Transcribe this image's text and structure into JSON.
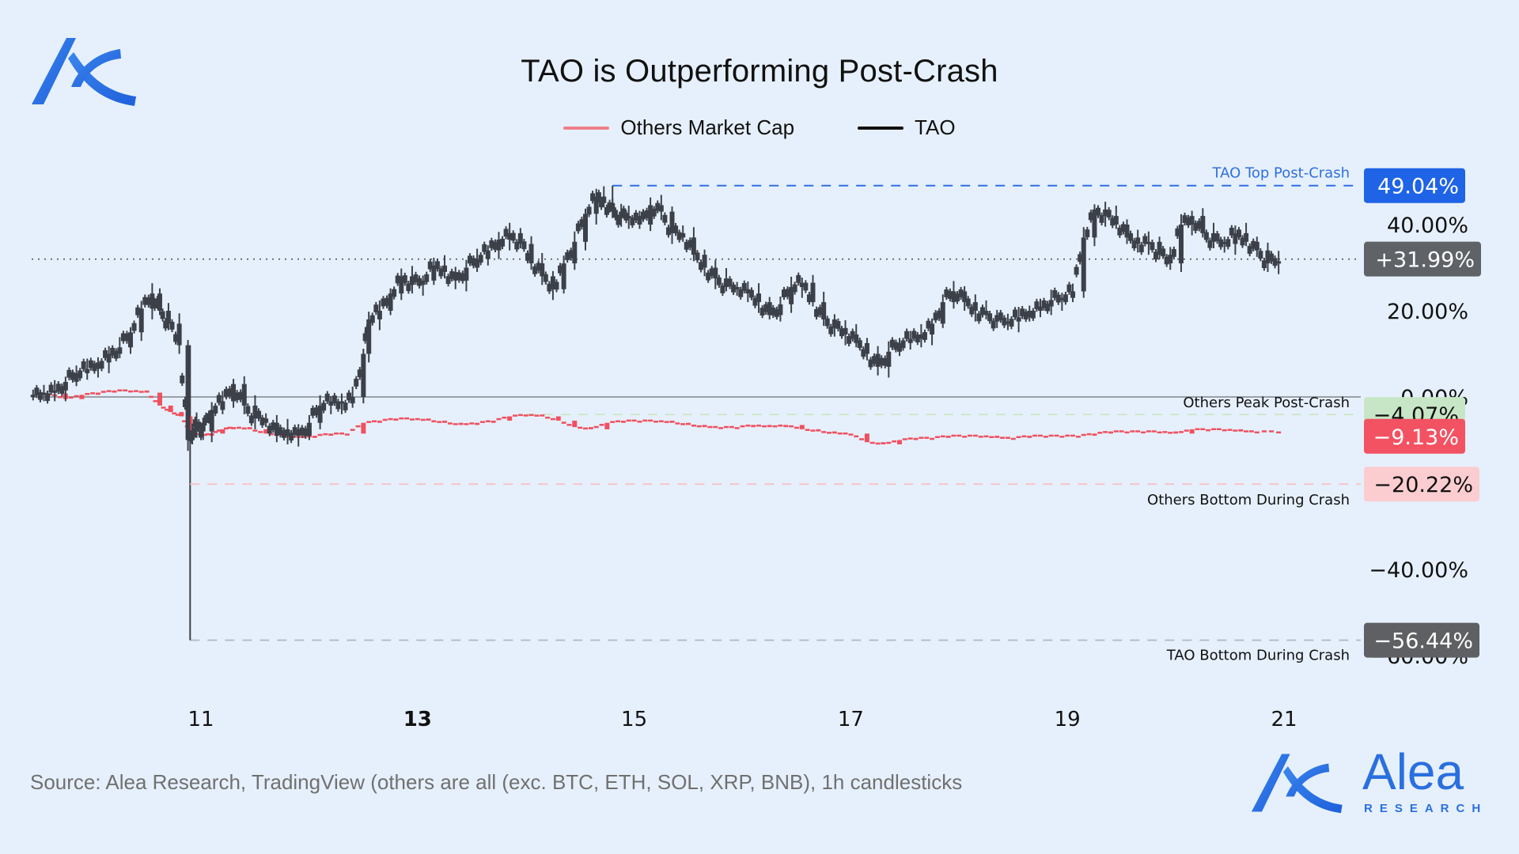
{
  "header": {
    "title": "TAO is Outperforming Post-Crash"
  },
  "brand": {
    "logo_icon": "alea-logo-icon",
    "name": "Alea",
    "subtitle": "RESEARCH",
    "color": "#2a6fe0"
  },
  "footer": {
    "source": "Source: Alea Research, TradingView (others are all (exc. BTC, ETH, SOL, XRP, BNB), 1h candlesticks"
  },
  "chart_data": {
    "type": "line",
    "title": "TAO is Outperforming Post-Crash",
    "xlabel": "",
    "ylabel": "",
    "x_unit": "day of month",
    "x_range": [
      9.44,
      21.7
    ],
    "ylim": [
      -62,
      62
    ],
    "y_ticks": [
      {
        "value": 40,
        "label": "40.00%"
      },
      {
        "value": 20,
        "label": "20.00%"
      },
      {
        "value": 0,
        "label": "0.00%"
      },
      {
        "value": -40,
        "label": "−40.00%"
      },
      {
        "value": -60,
        "label": "−60.00%"
      }
    ],
    "x_ticks": [
      {
        "value": 11,
        "label": "11",
        "bold": false
      },
      {
        "value": 13,
        "label": "13",
        "bold": true
      },
      {
        "value": 15,
        "label": "15",
        "bold": false
      },
      {
        "value": 17,
        "label": "17",
        "bold": false
      },
      {
        "value": 19,
        "label": "19",
        "bold": false
      },
      {
        "value": 21,
        "label": "21",
        "bold": false
      }
    ],
    "grid": false,
    "legend": {
      "placement": "top-center",
      "entries": [
        {
          "name": "Others Market Cap",
          "color": "#ee7f8a"
        },
        {
          "name": "TAO",
          "color": "#111111"
        }
      ]
    },
    "series": [
      {
        "name": "TAO",
        "style": "candlestick",
        "color": "#3c4048",
        "x": [
          9.45,
          9.55,
          9.65,
          9.75,
          9.85,
          9.95,
          10.05,
          10.15,
          10.25,
          10.35,
          10.45,
          10.55,
          10.62,
          10.7,
          10.8,
          10.88,
          10.92,
          10.96,
          11.02,
          11.1,
          11.2,
          11.3,
          11.4,
          11.5,
          11.6,
          11.7,
          11.8,
          11.9,
          12.0,
          12.1,
          12.2,
          12.3,
          12.4,
          12.5,
          12.55,
          12.65,
          12.75,
          12.85,
          12.95,
          13.05,
          13.15,
          13.25,
          13.35,
          13.45,
          13.55,
          13.65,
          13.75,
          13.85,
          13.95,
          14.05,
          14.15,
          14.25,
          14.35,
          14.45,
          14.55,
          14.65,
          14.72,
          14.8,
          14.88,
          14.95,
          15.05,
          15.15,
          15.25,
          15.35,
          15.45,
          15.55,
          15.65,
          15.75,
          15.85,
          15.95,
          16.05,
          16.15,
          16.25,
          16.35,
          16.45,
          16.55,
          16.65,
          16.75,
          16.85,
          16.95,
          17.05,
          17.15,
          17.25,
          17.35,
          17.45,
          17.55,
          17.65,
          17.75,
          17.85,
          17.95,
          18.05,
          18.15,
          18.25,
          18.35,
          18.45,
          18.55,
          18.65,
          18.75,
          18.85,
          18.95,
          19.05,
          19.15,
          19.25,
          19.35,
          19.45,
          19.55,
          19.65,
          19.75,
          19.85,
          19.95,
          20.05,
          20.15,
          20.25,
          20.35,
          20.45,
          20.55,
          20.65,
          20.75,
          20.85,
          20.95
        ],
        "close": [
          0.5,
          1.0,
          1.5,
          3.5,
          5.5,
          6.5,
          8.0,
          10.0,
          11.5,
          15.0,
          20.5,
          24.0,
          20.0,
          17.0,
          12.0,
          -10.0,
          -8.0,
          -6.0,
          -8.0,
          -3.0,
          -1.0,
          3.0,
          -2.0,
          -5.0,
          -6.0,
          -9.0,
          -7.5,
          -9.0,
          -6.0,
          -2.0,
          -1.0,
          -1.5,
          0.0,
          10.0,
          18.0,
          20.0,
          24.0,
          28.0,
          26.0,
          27.0,
          30.5,
          29.0,
          27.0,
          30.0,
          32.0,
          34.0,
          36.5,
          38.0,
          35.5,
          31.0,
          28.0,
          25.0,
          31.0,
          36.0,
          42.5,
          46.5,
          45.0,
          43.0,
          41.5,
          42.0,
          40.0,
          44.5,
          43.0,
          38.0,
          37.0,
          33.0,
          30.0,
          27.5,
          25.5,
          25.0,
          24.0,
          22.0,
          19.0,
          21.5,
          25.5,
          26.5,
          22.0,
          18.0,
          16.0,
          14.5,
          12.5,
          10.0,
          7.0,
          10.5,
          12.5,
          13.5,
          14.5,
          17.0,
          22.0,
          24.5,
          22.0,
          20.0,
          19.0,
          17.5,
          17.5,
          18.5,
          20.0,
          21.0,
          22.5,
          23.0,
          24.5,
          37.0,
          43.5,
          42.0,
          40.0,
          37.0,
          35.5,
          36.0,
          33.0,
          31.0,
          40.0,
          42.0,
          38.0,
          36.0,
          35.5,
          38.0,
          36.0,
          34.0,
          31.0,
          31.5
        ],
        "annotations": [
          {
            "label": "TAO Top Post-Crash",
            "value": 49.04,
            "badge": "49.04%",
            "color": "#1f63e6",
            "start_x": 14.8
          },
          {
            "label": "TAO Bottom During Crash",
            "value": -56.44,
            "badge": "−56.44%",
            "color": "#5f6063",
            "start_x": 10.9
          },
          {
            "label": "last",
            "value": 31.99,
            "badge": "+31.99%",
            "color": "#5f6368",
            "start_x": 9.45
          }
        ]
      },
      {
        "name": "Others Market Cap",
        "style": "candlestick",
        "color": "#f0505f",
        "x": [
          9.45,
          9.6,
          9.75,
          9.9,
          10.05,
          10.2,
          10.35,
          10.5,
          10.62,
          10.72,
          10.82,
          10.9,
          11.0,
          11.1,
          11.2,
          11.3,
          11.45,
          11.6,
          11.75,
          11.9,
          12.05,
          12.2,
          12.35,
          12.5,
          12.65,
          12.8,
          12.95,
          13.1,
          13.25,
          13.4,
          13.55,
          13.7,
          13.85,
          14.0,
          14.15,
          14.3,
          14.45,
          14.6,
          14.75,
          14.9,
          15.05,
          15.2,
          15.35,
          15.5,
          15.65,
          15.8,
          15.95,
          16.1,
          16.25,
          16.4,
          16.55,
          16.7,
          16.85,
          17.0,
          17.15,
          17.3,
          17.45,
          17.6,
          17.75,
          17.9,
          18.05,
          18.2,
          18.35,
          18.5,
          18.65,
          18.8,
          18.95,
          19.1,
          19.25,
          19.4,
          19.55,
          19.7,
          19.85,
          20.0,
          20.15,
          20.3,
          20.45,
          20.6,
          20.75,
          20.95
        ],
        "close": [
          0.5,
          0.8,
          -0.5,
          0.5,
          1.0,
          1.5,
          1.5,
          1.0,
          -2.0,
          -3.5,
          -4.5,
          -8.0,
          -9.0,
          -8.5,
          -7.5,
          -7.0,
          -7.5,
          -8.5,
          -9.0,
          -9.5,
          -9.0,
          -8.5,
          -8.5,
          -6.0,
          -5.5,
          -5.0,
          -5.0,
          -5.5,
          -6.0,
          -6.5,
          -6.0,
          -5.5,
          -4.5,
          -4.07,
          -4.5,
          -5.5,
          -7.0,
          -7.5,
          -6.0,
          -5.5,
          -5.5,
          -5.5,
          -6.0,
          -6.5,
          -7.0,
          -7.0,
          -7.0,
          -6.5,
          -7.0,
          -6.5,
          -7.5,
          -8.0,
          -8.5,
          -8.5,
          -10.5,
          -11.0,
          -10.0,
          -9.5,
          -9.5,
          -9.0,
          -9.0,
          -9.0,
          -9.5,
          -9.5,
          -9.0,
          -9.0,
          -9.0,
          -9.0,
          -8.5,
          -8.0,
          -8.0,
          -8.0,
          -8.0,
          -8.5,
          -7.5,
          -7.5,
          -7.5,
          -8.0,
          -8.0,
          -8.0
        ],
        "annotations": [
          {
            "label": "Others Peak Post-Crash",
            "value": -4.07,
            "badge": "−4.07%",
            "color": "#c7e6c6"
          },
          {
            "label": "last",
            "value": -9.13,
            "badge": "−9.13%",
            "color": "#f25262"
          },
          {
            "label": "Others Bottom During Crash",
            "value": -20.22,
            "badge": "−20.22%",
            "color": "#fbcdd0"
          }
        ]
      }
    ]
  }
}
